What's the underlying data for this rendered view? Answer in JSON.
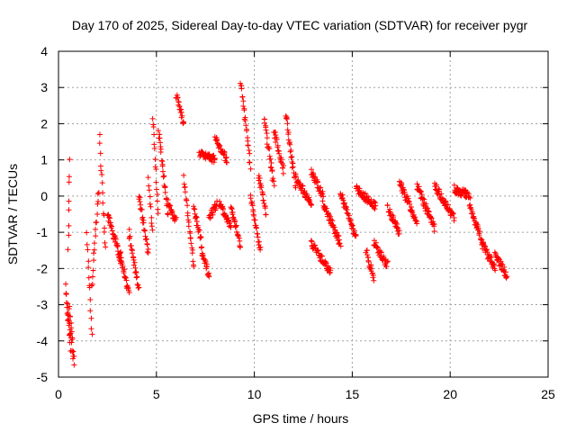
{
  "chart_data": {
    "type": "scatter",
    "title": "Day 170 of 2025, Sidereal Day-to-day VTEC variation (SDTVAR) for receiver pygr",
    "xlabel": "GPS time / hours",
    "ylabel": "SDTVAR / TECUs",
    "xlim": [
      0,
      25
    ],
    "ylim": [
      -5,
      4
    ],
    "xticks": [
      0,
      5,
      10,
      15,
      20,
      25
    ],
    "yticks": [
      -5,
      -4,
      -3,
      -2,
      -1,
      0,
      1,
      2,
      3,
      4
    ],
    "grid": true,
    "marker": "+",
    "color": "#ff0000",
    "series": [
      {
        "name": "SDTVAR",
        "segments": [
          [
            0.35,
            0.6,
            -2.5,
            -4.2
          ],
          [
            0.45,
            0.75,
            -3.0,
            -4.5
          ],
          [
            0.5,
            0.55,
            -1.5,
            1.0
          ],
          [
            0.55,
            0.8,
            -3.0,
            -4.6
          ],
          [
            1.45,
            1.7,
            -1.0,
            -3.8
          ],
          [
            1.7,
            2.05,
            -2.5,
            0.2
          ],
          [
            2.1,
            2.4,
            1.6,
            -1.5
          ],
          [
            2.5,
            3.2,
            -0.5,
            -1.8
          ],
          [
            3.1,
            3.6,
            -1.5,
            -2.7
          ],
          [
            3.6,
            4.1,
            -1.0,
            -2.6
          ],
          [
            4.1,
            4.6,
            0.0,
            -1.6
          ],
          [
            4.6,
            4.8,
            0.5,
            -1.0
          ],
          [
            4.8,
            5.1,
            2.2,
            -0.5
          ],
          [
            5.1,
            5.6,
            1.8,
            -0.5
          ],
          [
            5.6,
            6.0,
            -0.2,
            -0.7
          ],
          [
            6.0,
            6.4,
            2.8,
            2.0
          ],
          [
            6.4,
            6.9,
            0.5,
            -1.9
          ],
          [
            6.9,
            7.3,
            -0.3,
            -1.3
          ],
          [
            7.3,
            7.7,
            -1.5,
            -2.2
          ],
          [
            7.7,
            8.1,
            -0.6,
            -0.2
          ],
          [
            7.2,
            8.0,
            1.2,
            1.0
          ],
          [
            8.0,
            8.6,
            1.6,
            1.0
          ],
          [
            8.2,
            8.8,
            -0.2,
            -0.8
          ],
          [
            8.8,
            9.3,
            -0.2,
            -1.4
          ],
          [
            9.3,
            9.8,
            3.2,
            0.8
          ],
          [
            9.8,
            10.3,
            0.0,
            -1.5
          ],
          [
            10.2,
            10.6,
            0.6,
            -0.5
          ],
          [
            10.5,
            11.0,
            2.1,
            0.3
          ],
          [
            11.0,
            11.5,
            1.8,
            0.7
          ],
          [
            11.6,
            12.1,
            2.3,
            0.3
          ],
          [
            12.1,
            12.9,
            0.5,
            -0.2
          ],
          [
            12.9,
            13.5,
            0.7,
            0.0
          ],
          [
            12.9,
            13.9,
            -1.3,
            -2.1
          ],
          [
            13.5,
            14.4,
            -0.2,
            -1.3
          ],
          [
            14.4,
            15.2,
            0.1,
            -1.2
          ],
          [
            15.2,
            16.2,
            0.2,
            -0.3
          ],
          [
            15.7,
            16.1,
            -1.5,
            -2.3
          ],
          [
            16.1,
            16.8,
            -1.3,
            -1.9
          ],
          [
            16.8,
            17.4,
            -0.3,
            -1.0
          ],
          [
            17.4,
            18.3,
            0.4,
            -0.7
          ],
          [
            18.3,
            19.2,
            0.3,
            -0.9
          ],
          [
            19.2,
            20.2,
            0.3,
            -0.6
          ],
          [
            20.2,
            21.0,
            0.2,
            0.0
          ],
          [
            21.0,
            21.6,
            -0.3,
            -1.2
          ],
          [
            21.6,
            22.3,
            -1.3,
            -2.0
          ],
          [
            22.3,
            22.9,
            -1.6,
            -2.2
          ]
        ]
      }
    ]
  }
}
